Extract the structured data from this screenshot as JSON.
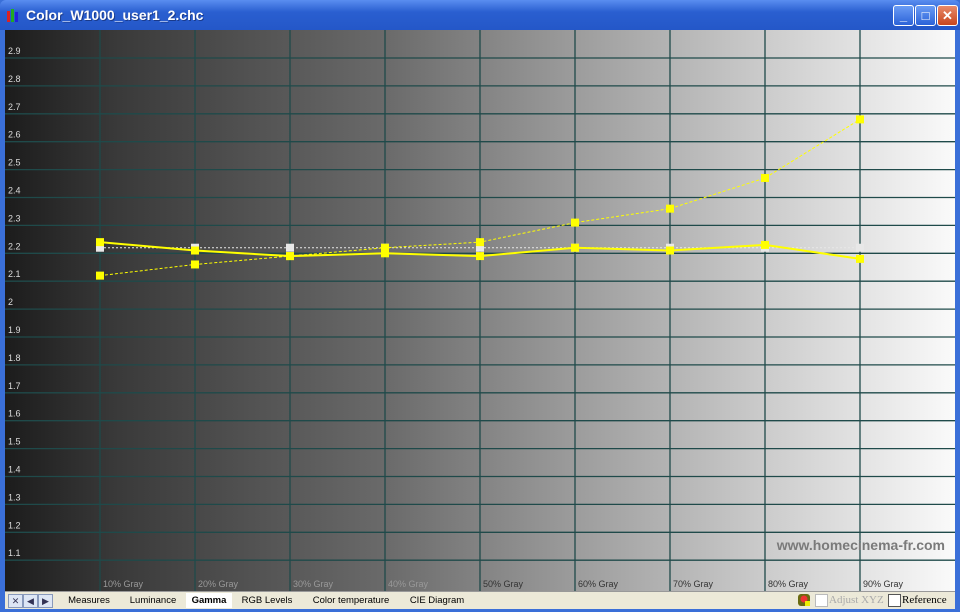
{
  "window": {
    "title": "Color_W1000_user1_2.chc",
    "controls": [
      "minimize",
      "maximize",
      "close"
    ]
  },
  "watermark": "www.homecinema-fr.com",
  "tabs": [
    {
      "label": "Measures"
    },
    {
      "label": "Luminance"
    },
    {
      "label": "Gamma",
      "active": true
    },
    {
      "label": "RGB Levels"
    },
    {
      "label": "Color temperature"
    },
    {
      "label": "CIE Diagram"
    }
  ],
  "nav": {
    "close": "✕",
    "prev": "◀",
    "next": "▶"
  },
  "options": {
    "adjust_xyz": "Adjust XYZ",
    "reference": "Reference"
  },
  "chart_data": {
    "type": "line",
    "ylim": [
      1.0,
      3.0
    ],
    "yticks": [
      "2.9",
      "2.8",
      "2.7",
      "2.6",
      "2.5",
      "2.4",
      "2.3",
      "2.2",
      "2.1",
      "2",
      "1.9",
      "1.8",
      "1.7",
      "1.6",
      "1.5",
      "1.4",
      "1.3",
      "1.2",
      "1.1"
    ],
    "categories": [
      "10% Gray",
      "20% Gray",
      "30% Gray",
      "40% Gray",
      "50% Gray",
      "60% Gray",
      "70% Gray",
      "80% Gray",
      "90% Gray"
    ],
    "grid": true,
    "series": [
      {
        "style": "solid",
        "color": "#ffff00",
        "values": [
          2.24,
          2.21,
          2.19,
          2.2,
          2.19,
          2.22,
          2.21,
          2.23,
          2.18
        ]
      },
      {
        "style": "dashed",
        "color": "#ffff00",
        "values": [
          2.12,
          2.16,
          2.19,
          2.22,
          2.24,
          2.31,
          2.36,
          2.47,
          2.68
        ]
      },
      {
        "style": "dotted",
        "color": "#e8e8e8",
        "values": [
          2.22,
          2.22,
          2.22,
          2.22,
          2.22,
          2.22,
          2.22,
          2.22,
          2.22
        ]
      }
    ]
  }
}
